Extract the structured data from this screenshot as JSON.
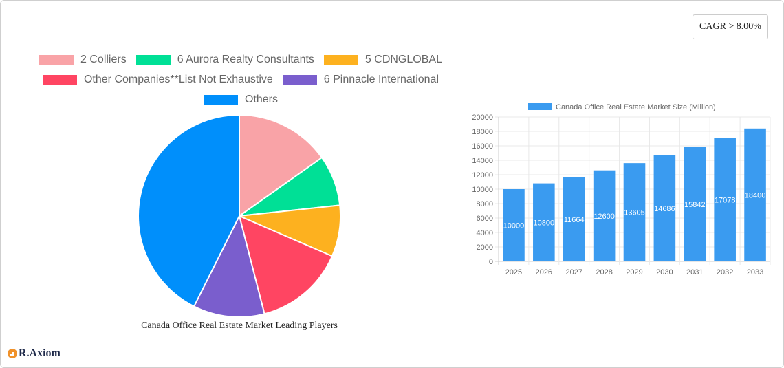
{
  "cagr_badge": {
    "label": "CAGR > 8.00%"
  },
  "brand": {
    "name": "R.Axiom"
  },
  "chart_data": [
    {
      "type": "pie",
      "title": "Canada Office Real Estate Market Leading Players",
      "legend_position": "top",
      "labels": [
        "2 Colliers",
        "6 Aurora Realty Consultants",
        "5 CDNGLOBAL",
        "Other Companies**List Not Exhaustive",
        "6 Pinnacle International",
        "Others"
      ],
      "values": [
        15.2,
        8.1,
        8.2,
        14.5,
        11.4,
        42.6
      ],
      "colors": [
        "#f9a3a7",
        "#00e096",
        "#fdb11f",
        "#ff4562",
        "#7a5ecd",
        "#008ffb"
      ]
    },
    {
      "type": "bar",
      "title": "",
      "legend": [
        "Canada Office Real Estate Market Size (Million)"
      ],
      "categories": [
        "2025",
        "2026",
        "2027",
        "2028",
        "2029",
        "2030",
        "2031",
        "2032",
        "2033"
      ],
      "series": [
        {
          "name": "Canada Office Real Estate Market Size (Million)",
          "values": [
            10000,
            10800,
            11664,
            12600,
            13605,
            14686,
            15842,
            17078,
            18400
          ],
          "color": "#3a9bf0"
        }
      ],
      "xlabel": "",
      "ylabel": "",
      "ylim": [
        0,
        20000
      ],
      "yticks": [
        0,
        2000,
        4000,
        6000,
        8000,
        10000,
        12000,
        14000,
        16000,
        18000,
        20000
      ],
      "grid": true,
      "data_labels": true
    }
  ]
}
